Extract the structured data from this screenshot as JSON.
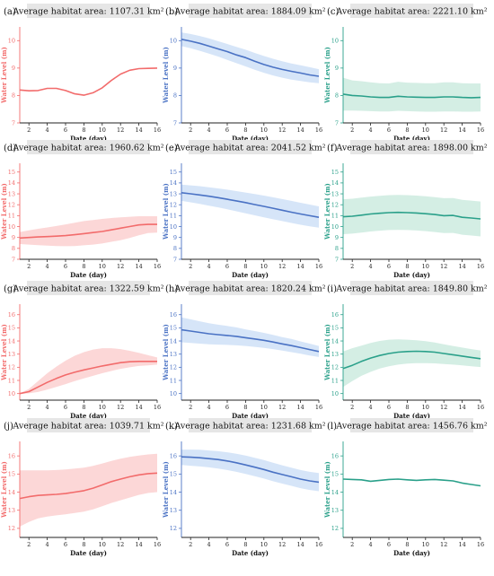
{
  "colors": {
    "red": "#f26b6b",
    "red_fill": "#fbd0d0",
    "blue": "#4a72c4",
    "blue_fill": "#cfe0f7",
    "green": "#2aa08a",
    "green_fill": "#cdebdf",
    "title_bg": "#e6e6e6"
  },
  "chart_data": [
    {
      "type": "line",
      "panel": "(a)",
      "title": "Average habitat area: 1107.31 km²",
      "color": "red",
      "xlabel": "Date (day)",
      "ylabel": "Water Level (m)",
      "xlim": [
        1,
        16
      ],
      "ylim": [
        7,
        10.5
      ],
      "xticks": [
        2,
        4,
        6,
        8,
        10,
        12,
        14,
        16
      ],
      "yticks": [
        7,
        8,
        9,
        10
      ],
      "x": [
        1,
        2,
        3,
        4,
        5,
        6,
        7,
        8,
        9,
        10,
        11,
        12,
        13,
        14,
        15,
        16
      ],
      "y": [
        8.2,
        8.17,
        8.18,
        8.26,
        8.26,
        8.18,
        8.06,
        8.01,
        8.1,
        8.28,
        8.55,
        8.78,
        8.92,
        8.98,
        8.99,
        9.0
      ]
    },
    {
      "type": "line",
      "panel": "(b)",
      "title": "Average habitat area: 1884.09 km²",
      "color": "blue",
      "xlabel": "Date (day)",
      "ylabel": "Water Level (m)",
      "xlim": [
        1,
        16
      ],
      "ylim": [
        7,
        10.5
      ],
      "xticks": [
        2,
        4,
        6,
        8,
        10,
        12,
        14,
        16
      ],
      "yticks": [
        7,
        8,
        9,
        10
      ],
      "x": [
        1,
        2,
        3,
        4,
        5,
        6,
        7,
        8,
        9,
        10,
        11,
        12,
        13,
        14,
        15,
        16
      ],
      "y": [
        10.05,
        9.98,
        9.9,
        9.8,
        9.7,
        9.6,
        9.48,
        9.38,
        9.25,
        9.13,
        9.03,
        8.95,
        8.88,
        8.82,
        8.75,
        8.7
      ],
      "lower": [
        9.8,
        9.72,
        9.63,
        9.53,
        9.42,
        9.3,
        9.18,
        9.06,
        8.94,
        8.83,
        8.73,
        8.65,
        8.58,
        8.53,
        8.48,
        8.45
      ],
      "upper": [
        10.3,
        10.24,
        10.17,
        10.08,
        9.98,
        9.88,
        9.77,
        9.67,
        9.55,
        9.44,
        9.34,
        9.25,
        9.17,
        9.1,
        9.03,
        8.96
      ]
    },
    {
      "type": "line",
      "panel": "(c)",
      "title": "Average habitat area: 2221.10 km²",
      "color": "green",
      "xlabel": "Date (day)",
      "ylabel": "Water Level (m)",
      "xlim": [
        1,
        16
      ],
      "ylim": [
        7,
        10.5
      ],
      "xticks": [
        2,
        4,
        6,
        8,
        10,
        12,
        14,
        16
      ],
      "yticks": [
        7,
        8,
        9,
        10
      ],
      "x": [
        1,
        2,
        3,
        4,
        5,
        6,
        7,
        8,
        9,
        10,
        11,
        12,
        13,
        14,
        15,
        16
      ],
      "y": [
        8.05,
        8.0,
        7.98,
        7.95,
        7.93,
        7.93,
        7.97,
        7.95,
        7.94,
        7.93,
        7.93,
        7.95,
        7.95,
        7.93,
        7.92,
        7.93
      ],
      "lower": [
        7.45,
        7.45,
        7.44,
        7.43,
        7.42,
        7.42,
        7.44,
        7.43,
        7.42,
        7.41,
        7.41,
        7.42,
        7.42,
        7.41,
        7.41,
        7.42
      ],
      "upper": [
        8.65,
        8.55,
        8.52,
        8.48,
        8.45,
        8.44,
        8.5,
        8.47,
        8.46,
        8.45,
        8.45,
        8.48,
        8.48,
        8.45,
        8.44,
        8.44
      ]
    },
    {
      "type": "line",
      "panel": "(d)",
      "title": "Average habitat area: 1960.62 km²",
      "color": "red",
      "xlabel": "Date (day)",
      "ylabel": "Water Level (m)",
      "xlim": [
        1,
        16
      ],
      "ylim": [
        7,
        15.8
      ],
      "xticks": [
        2,
        4,
        6,
        8,
        10,
        12,
        14,
        16
      ],
      "yticks": [
        7,
        8,
        9,
        10,
        11,
        12,
        13,
        14,
        15
      ],
      "x": [
        1,
        2,
        3,
        4,
        5,
        6,
        7,
        8,
        9,
        10,
        11,
        12,
        13,
        14,
        15,
        16
      ],
      "y": [
        8.95,
        9.0,
        9.05,
        9.08,
        9.12,
        9.17,
        9.25,
        9.35,
        9.45,
        9.55,
        9.7,
        9.85,
        10.0,
        10.15,
        10.2,
        10.2
      ],
      "lower": [
        8.4,
        8.35,
        8.3,
        8.25,
        8.22,
        8.2,
        8.22,
        8.28,
        8.35,
        8.45,
        8.6,
        8.75,
        8.95,
        9.2,
        9.4,
        9.45
      ],
      "upper": [
        9.5,
        9.65,
        9.8,
        9.92,
        10.05,
        10.2,
        10.35,
        10.5,
        10.6,
        10.7,
        10.78,
        10.85,
        10.9,
        10.95,
        10.95,
        10.95
      ]
    },
    {
      "type": "line",
      "panel": "(e)",
      "title": "Average habitat area: 2041.52 km²",
      "color": "blue",
      "xlabel": "Date (day)",
      "ylabel": "Water Level (m)",
      "xlim": [
        1,
        16
      ],
      "ylim": [
        7,
        15.8
      ],
      "xticks": [
        2,
        4,
        6,
        8,
        10,
        12,
        14,
        16
      ],
      "yticks": [
        7,
        8,
        9,
        10,
        11,
        12,
        13,
        14,
        15
      ],
      "x": [
        1,
        2,
        3,
        4,
        5,
        6,
        7,
        8,
        9,
        10,
        11,
        12,
        13,
        14,
        15,
        16
      ],
      "y": [
        13.1,
        13.0,
        12.9,
        12.78,
        12.65,
        12.5,
        12.35,
        12.2,
        12.02,
        11.85,
        11.68,
        11.5,
        11.32,
        11.15,
        11.0,
        10.85
      ],
      "lower": [
        12.35,
        12.22,
        12.08,
        11.92,
        11.76,
        11.58,
        11.4,
        11.22,
        11.03,
        10.85,
        10.67,
        10.5,
        10.33,
        10.17,
        10.02,
        9.9
      ],
      "upper": [
        13.85,
        13.78,
        13.7,
        13.6,
        13.5,
        13.38,
        13.25,
        13.12,
        12.98,
        12.84,
        12.68,
        12.52,
        12.35,
        12.18,
        12.02,
        11.85
      ]
    },
    {
      "type": "line",
      "panel": "(f)",
      "title": "Average habitat area: 1898.00 km²",
      "color": "green",
      "xlabel": "Date (day)",
      "ylabel": "Water Level (m)",
      "xlim": [
        1,
        16
      ],
      "ylim": [
        7,
        15.8
      ],
      "xticks": [
        2,
        4,
        6,
        8,
        10,
        12,
        14,
        16
      ],
      "yticks": [
        7,
        8,
        9,
        10,
        11,
        12,
        13,
        14,
        15
      ],
      "x": [
        1,
        2,
        3,
        4,
        5,
        6,
        7,
        8,
        9,
        10,
        11,
        12,
        13,
        14,
        15,
        16
      ],
      "y": [
        10.9,
        10.95,
        11.05,
        11.15,
        11.22,
        11.28,
        11.3,
        11.28,
        11.24,
        11.18,
        11.1,
        11.0,
        11.02,
        10.85,
        10.78,
        10.7
      ],
      "lower": [
        9.3,
        9.35,
        9.45,
        9.55,
        9.62,
        9.68,
        9.7,
        9.68,
        9.64,
        9.58,
        9.5,
        9.4,
        9.42,
        9.25,
        9.18,
        9.1
      ],
      "upper": [
        12.5,
        12.55,
        12.65,
        12.75,
        12.82,
        12.88,
        12.9,
        12.88,
        12.84,
        12.78,
        12.7,
        12.6,
        12.62,
        12.45,
        12.38,
        12.3
      ]
    },
    {
      "type": "line",
      "panel": "(g)",
      "title": "Average habitat area: 1322.59 km²",
      "color": "red",
      "xlabel": "Date (day)",
      "ylabel": "Water Level (m)",
      "xlim": [
        1,
        16
      ],
      "ylim": [
        9.5,
        16.8
      ],
      "xticks": [
        2,
        4,
        6,
        8,
        10,
        12,
        14,
        16
      ],
      "yticks": [
        10,
        11,
        12,
        13,
        14,
        15,
        16
      ],
      "x": [
        1,
        2,
        3,
        4,
        5,
        6,
        7,
        8,
        9,
        10,
        11,
        12,
        13,
        14,
        15,
        16
      ],
      "y": [
        10.0,
        10.15,
        10.5,
        10.85,
        11.15,
        11.42,
        11.62,
        11.8,
        11.95,
        12.1,
        12.22,
        12.35,
        12.42,
        12.45,
        12.45,
        12.45
      ],
      "lower": [
        9.98,
        10.02,
        10.12,
        10.3,
        10.5,
        10.72,
        10.95,
        11.15,
        11.35,
        11.55,
        11.72,
        11.88,
        12.0,
        12.1,
        12.15,
        12.2
      ],
      "upper": [
        10.02,
        10.35,
        10.95,
        11.55,
        12.05,
        12.5,
        12.88,
        13.15,
        13.35,
        13.45,
        13.45,
        13.38,
        13.25,
        13.1,
        12.92,
        12.75
      ]
    },
    {
      "type": "line",
      "panel": "(h)",
      "title": "Average habitat area: 1820.24 km²",
      "color": "blue",
      "xlabel": "Date (day)",
      "ylabel": "Water Level (m)",
      "xlim": [
        1,
        16
      ],
      "ylim": [
        9.5,
        16.8
      ],
      "xticks": [
        2,
        4,
        6,
        8,
        10,
        12,
        14,
        16
      ],
      "yticks": [
        10,
        11,
        12,
        13,
        14,
        15,
        16
      ],
      "x": [
        1,
        2,
        3,
        4,
        5,
        6,
        7,
        8,
        9,
        10,
        11,
        12,
        13,
        14,
        15,
        16
      ],
      "y": [
        14.85,
        14.75,
        14.65,
        14.55,
        14.48,
        14.42,
        14.35,
        14.25,
        14.15,
        14.05,
        13.92,
        13.78,
        13.65,
        13.5,
        13.35,
        13.2
      ],
      "lower": [
        13.9,
        13.85,
        13.8,
        13.75,
        13.72,
        13.7,
        13.67,
        13.62,
        13.55,
        13.48,
        13.38,
        13.27,
        13.15,
        13.03,
        12.9,
        12.78
      ],
      "upper": [
        15.8,
        15.65,
        15.5,
        15.35,
        15.24,
        15.14,
        15.03,
        14.88,
        14.75,
        14.62,
        14.46,
        14.29,
        14.15,
        13.97,
        13.8,
        13.62
      ]
    },
    {
      "type": "line",
      "panel": "(i)",
      "title": "Average habitat area: 1849.80 km²",
      "color": "green",
      "xlabel": "Date (day)",
      "ylabel": "Water Level (m)",
      "xlim": [
        1,
        16
      ],
      "ylim": [
        9.5,
        16.8
      ],
      "xticks": [
        2,
        4,
        6,
        8,
        10,
        12,
        14,
        16
      ],
      "yticks": [
        10,
        11,
        12,
        13,
        14,
        15,
        16
      ],
      "x": [
        1,
        2,
        3,
        4,
        5,
        6,
        7,
        8,
        9,
        10,
        11,
        12,
        13,
        14,
        15,
        16
      ],
      "y": [
        11.9,
        12.15,
        12.45,
        12.7,
        12.9,
        13.05,
        13.15,
        13.2,
        13.22,
        13.2,
        13.15,
        13.05,
        12.95,
        12.85,
        12.75,
        12.65
      ],
      "lower": [
        10.5,
        10.95,
        11.35,
        11.65,
        11.9,
        12.08,
        12.2,
        12.28,
        12.32,
        12.32,
        12.3,
        12.25,
        12.2,
        12.15,
        12.08,
        12.02
      ],
      "upper": [
        13.2,
        13.45,
        13.65,
        13.85,
        14.0,
        14.1,
        14.12,
        14.1,
        14.05,
        13.98,
        13.88,
        13.75,
        13.62,
        13.5,
        13.38,
        13.28
      ]
    },
    {
      "type": "line",
      "panel": "(j)",
      "title": "Average habitat area: 1039.71 km²",
      "color": "red",
      "xlabel": "Date (day)",
      "ylabel": "Water Level (m)",
      "xlim": [
        1,
        16
      ],
      "ylim": [
        11.5,
        16.8
      ],
      "xticks": [
        2,
        4,
        6,
        8,
        10,
        12,
        14,
        16
      ],
      "yticks": [
        12,
        13,
        14,
        15,
        16
      ],
      "x": [
        1,
        2,
        3,
        4,
        5,
        6,
        7,
        8,
        9,
        10,
        11,
        12,
        13,
        14,
        15,
        16
      ],
      "y": [
        13.65,
        13.75,
        13.82,
        13.85,
        13.88,
        13.92,
        14.0,
        14.08,
        14.22,
        14.4,
        14.58,
        14.72,
        14.85,
        14.95,
        15.02,
        15.05
      ],
      "lower": [
        12.1,
        12.35,
        12.55,
        12.65,
        12.72,
        12.78,
        12.85,
        12.92,
        13.05,
        13.22,
        13.4,
        13.55,
        13.7,
        13.85,
        13.95,
        14.0
      ],
      "upper": [
        15.2,
        15.2,
        15.2,
        15.2,
        15.22,
        15.25,
        15.3,
        15.35,
        15.45,
        15.58,
        15.72,
        15.85,
        15.95,
        16.02,
        16.08,
        16.12
      ]
    },
    {
      "type": "line",
      "panel": "(k)",
      "title": "Average habitat area: 1231.68 km²",
      "color": "blue",
      "xlabel": "Date (day)",
      "ylabel": "Water Level (m)",
      "xlim": [
        1,
        16
      ],
      "ylim": [
        11.5,
        16.8
      ],
      "xticks": [
        2,
        4,
        6,
        8,
        10,
        12,
        14,
        16
      ],
      "yticks": [
        12,
        13,
        14,
        15,
        16
      ],
      "x": [
        1,
        2,
        3,
        4,
        5,
        6,
        7,
        8,
        9,
        10,
        11,
        12,
        13,
        14,
        15,
        16
      ],
      "y": [
        15.95,
        15.93,
        15.9,
        15.85,
        15.8,
        15.72,
        15.62,
        15.5,
        15.38,
        15.25,
        15.1,
        14.97,
        14.85,
        14.72,
        14.62,
        14.55
      ],
      "lower": [
        15.5,
        15.46,
        15.42,
        15.37,
        15.3,
        15.22,
        15.12,
        15.0,
        14.88,
        14.75,
        14.6,
        14.47,
        14.35,
        14.22,
        14.12,
        14.05
      ],
      "upper": [
        16.35,
        16.35,
        16.34,
        16.3,
        16.26,
        16.2,
        16.12,
        16.02,
        15.9,
        15.77,
        15.62,
        15.48,
        15.35,
        15.22,
        15.12,
        15.05
      ]
    },
    {
      "type": "line",
      "panel": "(l)",
      "title": "Average habitat area: 1456.76 km²",
      "color": "green",
      "xlabel": "Date (day)",
      "ylabel": "Water Level (m)",
      "xlim": [
        1,
        16
      ],
      "ylim": [
        11.5,
        16.8
      ],
      "xticks": [
        2,
        4,
        6,
        8,
        10,
        12,
        14,
        16
      ],
      "yticks": [
        12,
        13,
        14,
        15,
        16
      ],
      "x": [
        1,
        2,
        3,
        4,
        5,
        6,
        7,
        8,
        9,
        10,
        11,
        12,
        13,
        14,
        15,
        16
      ],
      "y": [
        14.72,
        14.7,
        14.68,
        14.6,
        14.65,
        14.7,
        14.72,
        14.68,
        14.65,
        14.68,
        14.7,
        14.66,
        14.62,
        14.5,
        14.42,
        14.35
      ]
    }
  ]
}
